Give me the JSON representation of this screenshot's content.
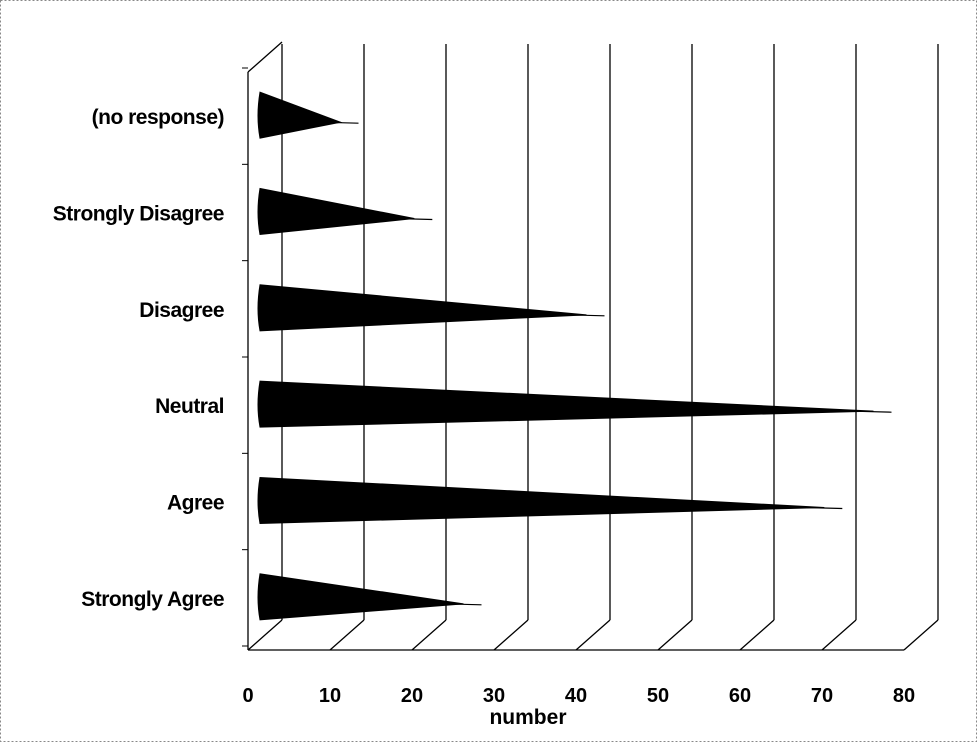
{
  "chart_data": {
    "type": "bar",
    "bar_shape": "cone",
    "categories": [
      "Strongly Agree",
      "Agree",
      "Neutral",
      "Disagree",
      "Strongly Disagree",
      "(no response)"
    ],
    "values": [
      24,
      68,
      74,
      39,
      18,
      9
    ],
    "title": "",
    "xlabel": "number",
    "ylabel": "",
    "xlim": [
      0,
      80
    ],
    "x_ticks": [
      "0",
      "10",
      "20",
      "30",
      "40",
      "50",
      "60",
      "70",
      "80"
    ],
    "orientation": "horizontal",
    "grid": true,
    "legend": "none",
    "colors": {
      "bar": "#000000",
      "grid": "#000000",
      "background": "#ffffff"
    }
  }
}
